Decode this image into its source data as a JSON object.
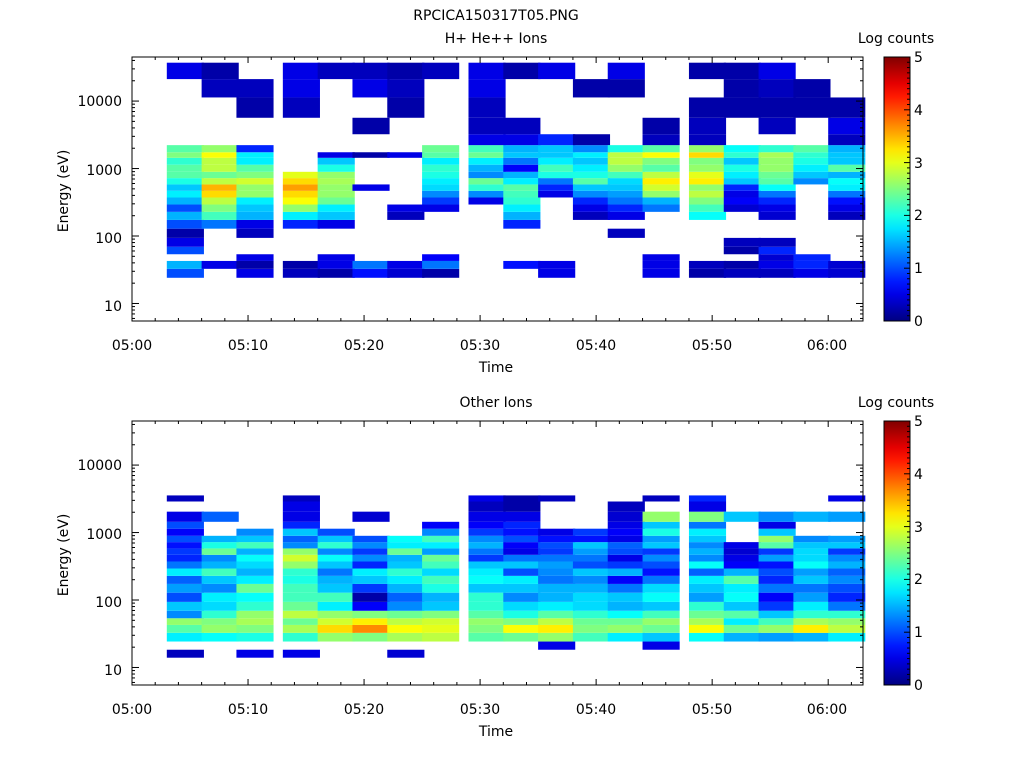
{
  "figure_title": "RPCICA150317T05.PNG",
  "colorbar": {
    "label": "Log counts",
    "ticks": [
      "0",
      "1",
      "2",
      "3",
      "4",
      "5"
    ],
    "range": [
      0,
      5
    ],
    "colormap": "jet"
  },
  "chart_data": [
    {
      "type": "heatmap",
      "title": "H+ He++ Ions",
      "xlabel": "Time",
      "ylabel": "Energy (eV)",
      "y_scale": "log",
      "xlim": [
        "05:00",
        "06:03"
      ],
      "ylim": [
        5.5,
        45000
      ],
      "x_ticks": [
        "05:00",
        "05:10",
        "05:20",
        "05:30",
        "05:40",
        "05:50",
        "06:00"
      ],
      "y_ticks": [
        "10",
        "100",
        "1000",
        "10000"
      ],
      "time_bins": [
        "05:03",
        "05:06",
        "05:09",
        "05:13",
        "05:16",
        "05:19",
        "05:22",
        "05:25",
        "05:29",
        "05:32",
        "05:35",
        "05:38",
        "05:41",
        "05:44",
        "05:48",
        "05:51",
        "05:54",
        "05:57",
        "06:00"
      ],
      "energy_bins": [
        28,
        38,
        48,
        60,
        80,
        110,
        150,
        200,
        260,
        330,
        420,
        520,
        650,
        800,
        1000,
        1300,
        1600,
        1900,
        2600,
        4000,
        8000,
        16000,
        28000
      ],
      "counts": [
        [
          1,
          1.5,
          0,
          1,
          0.5,
          0.2,
          1,
          1.5,
          1,
          1.5,
          1.8,
          1.6,
          2,
          2.3,
          2.3,
          2.1,
          2.5,
          2.3,
          0,
          0,
          0,
          0,
          0.5
        ],
        [
          0,
          0.5,
          0,
          0,
          0,
          0,
          1.2,
          2.2,
          2.5,
          2.8,
          3.3,
          3.5,
          2.8,
          2.4,
          2.8,
          2.8,
          3.1,
          2.6,
          0,
          0,
          0,
          0.3,
          0.2
        ],
        [
          0.5,
          0.2,
          0.5,
          0,
          0,
          0.3,
          0.5,
          1.5,
          1.6,
          1.8,
          2.6,
          2.6,
          2.9,
          2.5,
          2.3,
          1.8,
          1.8,
          0.8,
          0,
          0,
          0.2,
          0.3,
          0
        ],
        [
          0.3,
          0.2,
          0,
          0,
          0,
          0,
          0.8,
          1.8,
          2.6,
          3.1,
          3.3,
          3.6,
          3.3,
          3.0,
          0,
          0,
          0,
          0,
          0,
          0,
          0.3,
          0.5,
          0.5
        ],
        [
          0.2,
          0.5,
          0.5,
          0,
          0,
          0,
          0.5,
          1.6,
          1.8,
          2.4,
          2.6,
          2.6,
          2.7,
          2.6,
          2.0,
          1.6,
          0.5,
          0,
          0,
          0,
          0,
          0,
          0.3
        ],
        [
          0.7,
          1.2,
          0,
          0,
          0,
          0,
          0,
          0,
          0,
          0,
          0,
          0.5,
          0,
          0,
          0,
          0,
          0.2,
          0,
          0,
          0.2,
          0,
          0.5,
          0.3
        ],
        [
          0.4,
          0.5,
          0,
          0,
          0,
          0,
          0,
          0.3,
          0.5,
          0,
          0,
          0,
          0,
          0,
          0,
          0,
          0.5,
          0,
          0,
          0,
          0.2,
          0.3,
          0.2
        ],
        [
          0.2,
          1.2,
          0.6,
          0,
          0,
          0,
          0,
          0,
          0.5,
          0.9,
          1.3,
          1.7,
          1.8,
          2.0,
          2.1,
          1.8,
          2.3,
          2.4,
          0,
          0,
          0,
          0,
          0.3
        ],
        [
          0,
          0,
          0,
          0,
          0,
          0,
          0,
          0,
          0,
          0.5,
          1.3,
          2.1,
          2.4,
          1.3,
          1.5,
          1.8,
          2.4,
          2.2,
          0.5,
          0.3,
          0.3,
          0.5,
          0.5
        ],
        [
          0,
          0.7,
          0,
          0,
          0,
          0,
          0.8,
          1.5,
          1.8,
          2.1,
          2.2,
          2.3,
          1.8,
          1.5,
          0.6,
          1.2,
          1.6,
          1.5,
          0.5,
          0.3,
          0,
          0,
          0.2
        ],
        [
          0.5,
          0.5,
          0,
          0,
          0,
          0,
          0,
          0,
          0,
          0,
          0.5,
          0.8,
          1.2,
          2.0,
          2.2,
          1.8,
          1.6,
          1.6,
          0.8,
          0,
          0,
          0,
          0.5
        ],
        [
          0,
          0,
          0,
          0,
          0,
          0,
          0,
          0.3,
          0.5,
          0.8,
          1.3,
          1.6,
          2.3,
          2.0,
          1.8,
          1.6,
          1.8,
          1.3,
          0.2,
          0,
          0,
          0.2,
          0
        ],
        [
          0,
          0,
          0,
          0,
          0,
          0.3,
          0,
          0.5,
          0.8,
          1.2,
          1.4,
          1.6,
          1.7,
          2.2,
          2.6,
          2.8,
          2.8,
          2.0,
          0,
          0,
          0,
          0.2,
          0.5
        ],
        [
          0.5,
          0.5,
          0.5,
          0,
          0,
          0,
          0,
          0,
          1.2,
          1.5,
          2.6,
          2.9,
          3.2,
          2.8,
          2.3,
          2.5,
          3.1,
          2.3,
          0.3,
          0.2,
          0,
          0,
          0
        ],
        [
          0.2,
          0.3,
          0,
          0,
          0,
          0,
          0,
          1.9,
          2.2,
          2.5,
          2.8,
          2.6,
          3.2,
          3.0,
          2.6,
          2.5,
          3.3,
          2.6,
          0.3,
          0.3,
          0.2,
          0,
          0.2
        ],
        [
          0.3,
          0.2,
          0,
          0.2,
          0.3,
          0,
          0,
          0,
          0.4,
          0.6,
          0.5,
          0.8,
          1.6,
          1.8,
          2.0,
          1.6,
          2.1,
          1.9,
          0,
          0,
          0.2,
          0.2,
          0.2
        ],
        [
          0.3,
          0.5,
          0.4,
          0.8,
          0.3,
          0,
          0,
          0.4,
          0.5,
          0.8,
          1.2,
          1.9,
          2.3,
          2.4,
          2.6,
          2.6,
          2.7,
          2.1,
          0,
          0.3,
          0.2,
          0.3,
          0.5
        ],
        [
          0.5,
          0.8,
          0.8,
          0,
          0,
          0,
          0,
          0,
          0,
          0,
          0,
          0,
          1.3,
          1.6,
          1.8,
          2.0,
          2.1,
          2.3,
          0,
          0,
          0.2,
          0.2,
          0
        ],
        [
          0.4,
          0.4,
          0,
          0,
          0,
          0,
          0,
          0.3,
          0.5,
          0.7,
          1.2,
          1.8,
          1.9,
          1.5,
          2.3,
          1.6,
          1.6,
          1.5,
          0.3,
          0.5,
          0.2,
          0,
          0
        ]
      ]
    },
    {
      "type": "heatmap",
      "title": "Other Ions",
      "xlabel": "Time",
      "ylabel": "Energy (eV)",
      "y_scale": "log",
      "xlim": [
        "05:00",
        "06:03"
      ],
      "ylim": [
        5.5,
        45000
      ],
      "x_ticks": [
        "05:00",
        "05:10",
        "05:20",
        "05:30",
        "05:40",
        "05:50",
        "06:00"
      ],
      "y_ticks": [
        "10",
        "100",
        "1000",
        "10000"
      ],
      "time_bins": [
        "05:03",
        "05:06",
        "05:09",
        "05:13",
        "05:16",
        "05:19",
        "05:22",
        "05:25",
        "05:29",
        "05:32",
        "05:35",
        "05:38",
        "05:41",
        "05:44",
        "05:48",
        "05:51",
        "05:54",
        "05:57",
        "06:00"
      ],
      "energy_bins": [
        16,
        21,
        28,
        38,
        48,
        60,
        80,
        110,
        150,
        200,
        260,
        330,
        420,
        520,
        650,
        800,
        1000,
        1300,
        1600,
        2600,
        3200
      ],
      "counts": [
        [
          0.3,
          0,
          1.8,
          2.3,
          2.6,
          1.3,
          1.6,
          1.0,
          1.4,
          1.1,
          1.8,
          1.2,
          0.8,
          0.9,
          0.7,
          1.0,
          0.6,
          1.0,
          0.5,
          0,
          0.3
        ],
        [
          0,
          0,
          1.9,
          2.6,
          2.5,
          2.1,
          1.7,
          1.8,
          1.3,
          1.6,
          2.2,
          1.5,
          1.3,
          2.4,
          2.0,
          1.5,
          0,
          0,
          1.1,
          0,
          0
        ],
        [
          0.5,
          0,
          2.0,
          2.5,
          2.7,
          2.6,
          2.1,
          1.9,
          2.4,
          1.8,
          1.5,
          1.7,
          1.9,
          1.5,
          2.2,
          1.6,
          1.3,
          0,
          0,
          0,
          0
        ],
        [
          0.5,
          0,
          2.1,
          2.7,
          2.4,
          2.8,
          2.4,
          2.2,
          2.2,
          2.0,
          2.1,
          2.6,
          2.9,
          2.6,
          1.3,
          1.1,
          1.6,
          0.8,
          0.5,
          0.5,
          0.3
        ],
        [
          0,
          0,
          2.6,
          3.3,
          2.9,
          2.6,
          1.8,
          2.2,
          1.6,
          1.5,
          1.2,
          1.6,
          1.9,
          1.3,
          2.1,
          1.6,
          1.0,
          0,
          0,
          0,
          0
        ],
        [
          0,
          0,
          2.5,
          3.7,
          3.2,
          2.5,
          0.6,
          0.2,
          0.9,
          1.6,
          1.8,
          0.8,
          1.3,
          0.9,
          1.3,
          1.0,
          0,
          0,
          0.4,
          0,
          0
        ],
        [
          0.4,
          0,
          2.7,
          3.1,
          2.8,
          2.4,
          1.3,
          1.1,
          1.5,
          1.8,
          2.1,
          1.6,
          1.5,
          2.4,
          1.8,
          1.9,
          0,
          0,
          0,
          0,
          0
        ],
        [
          0,
          0,
          2.8,
          3.0,
          2.9,
          2.5,
          1.6,
          1.5,
          2.0,
          2.2,
          1.7,
          2.2,
          2.4,
          1.4,
          1.8,
          2.2,
          1.3,
          0.6,
          0,
          0,
          0
        ],
        [
          0,
          0,
          2.3,
          2.5,
          2.6,
          2.3,
          2.1,
          2.1,
          1.6,
          1.9,
          1.8,
          1.6,
          0.9,
          1.2,
          1.5,
          1.3,
          0.9,
          0.6,
          0.5,
          0.3,
          0.5
        ],
        [
          0,
          0,
          2.4,
          3.1,
          2.5,
          2.0,
          1.7,
          1.3,
          1.6,
          1.8,
          1.0,
          1.6,
          1.2,
          0.5,
          0.6,
          1.0,
          0.7,
          0.8,
          0.5,
          0.2,
          0.2
        ],
        [
          0,
          0.5,
          2.6,
          3.2,
          2.8,
          2.3,
          1.8,
          1.5,
          1.5,
          1.2,
          1.3,
          1.4,
          1.2,
          0.9,
          1.0,
          0.7,
          0.5,
          0,
          0,
          0,
          0.3
        ],
        [
          0,
          0,
          2.2,
          2.5,
          2.4,
          2.1,
          1.7,
          1.7,
          1.5,
          1.3,
          1.6,
          1.0,
          1.2,
          1.4,
          1.6,
          0.7,
          0.9,
          0,
          0,
          0,
          0
        ],
        [
          0,
          0,
          1.8,
          2.6,
          2.4,
          1.9,
          1.5,
          1.6,
          1.2,
          0.6,
          1.5,
          0.9,
          0.5,
          1.0,
          1.1,
          0.5,
          0.6,
          0.5,
          0.4,
          0.3,
          0
        ],
        [
          0,
          0.5,
          1.6,
          2.4,
          2.6,
          2.2,
          1.6,
          1.9,
          1.7,
          1.2,
          0.7,
          1.0,
          1.3,
          0.9,
          1.6,
          1.4,
          2.0,
          1.6,
          2.6,
          0,
          0.3
        ],
        [
          0,
          0,
          1.9,
          3.1,
          2.7,
          2.4,
          2.1,
          1.4,
          1.6,
          1.8,
          1.1,
          1.9,
          1.3,
          1.5,
          1.3,
          1.6,
          1.8,
          1.2,
          2.5,
          0.5,
          0.8
        ],
        [
          0,
          0,
          1.5,
          2.4,
          1.8,
          2.3,
          1.6,
          1.9,
          1.8,
          2.3,
          1.5,
          0.6,
          0.5,
          0.4,
          0.5,
          0,
          0,
          0,
          1.6,
          0,
          0
        ],
        [
          0,
          0,
          1.4,
          2.6,
          2.2,
          1.6,
          0.9,
          0.6,
          1.2,
          0.8,
          1.0,
          0.7,
          1.4,
          0.9,
          2.3,
          2.6,
          1.6,
          0.5,
          1.3,
          0,
          0
        ],
        [
          0,
          0,
          1.5,
          3.2,
          2.7,
          2.1,
          1.8,
          1.4,
          1.2,
          1.6,
          1.4,
          1.9,
          1.7,
          1.7,
          1.6,
          1.3,
          0,
          0,
          1.5,
          0,
          0
        ],
        [
          0,
          0,
          1.8,
          2.8,
          2.6,
          2.1,
          1.2,
          0.8,
          1.0,
          1.3,
          1.1,
          1.5,
          1.3,
          0.9,
          1.6,
          1.4,
          0,
          0,
          1.4,
          0,
          0.5
        ]
      ]
    }
  ]
}
